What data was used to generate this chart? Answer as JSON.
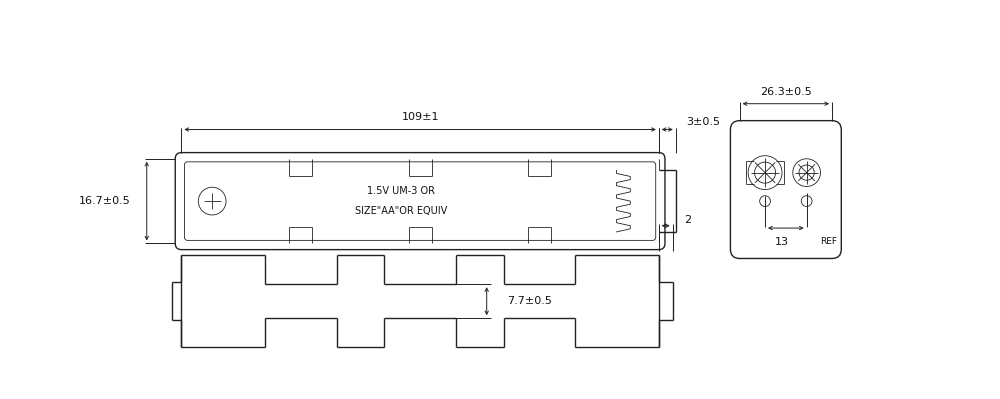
{
  "bg_color": "#ffffff",
  "line_color": "#222222",
  "text_color": "#111111",
  "fig_width": 10.0,
  "fig_height": 3.99,
  "note1": "1.5V UM-3 OR",
  "note2": "SIZE\"AA\"OR EQUIV",
  "dim_109": "109±1",
  "dim_3": "3±0.5",
  "dim_167": "16.7±0.5",
  "dim_77": "7.7±0.5",
  "dim_2": "2",
  "dim_263": "26.3±0.5",
  "dim_13": "13",
  "dim_ref": "REF"
}
